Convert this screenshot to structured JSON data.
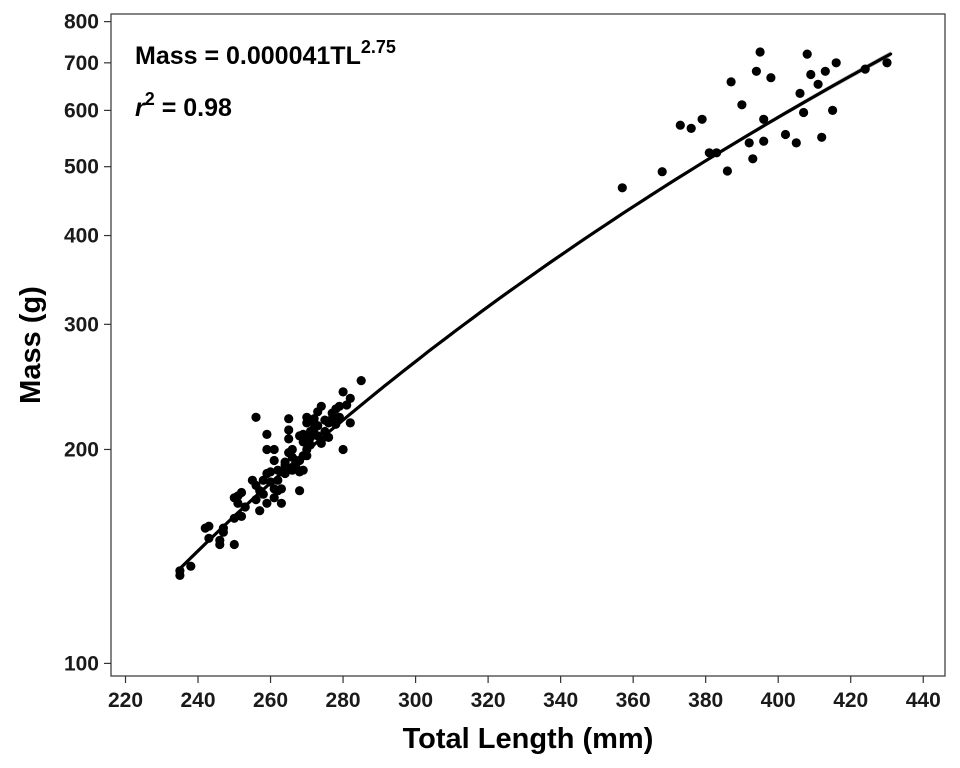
{
  "chart_data": {
    "type": "scatter",
    "xlabel": "Total Length (mm)",
    "ylabel": "Mass (g)",
    "xlim": [
      216,
      446
    ],
    "ylim": [
      96,
      820
    ],
    "y_scale": "log",
    "x_ticks": [
      220,
      240,
      260,
      280,
      300,
      320,
      340,
      360,
      380,
      400,
      420,
      440
    ],
    "y_ticks": [
      100,
      200,
      300,
      400,
      500,
      600,
      700,
      800
    ],
    "grid": false,
    "annotations": {
      "equation_prefix": "Mass = 0.000041TL",
      "equation_exponent": "2.75",
      "r2_symbol": "r",
      "r2_exponent": "2",
      "r2_value": " = 0.98"
    },
    "fit": {
      "type": "power",
      "coefficient": 4.1e-05,
      "exponent": 2.75,
      "x_range": [
        235,
        431
      ],
      "confidence_band": true
    },
    "colors": {
      "points": "#000000",
      "fit_line": "#000000",
      "confidence_band": "#bdbdbd",
      "panel_border": "#333333"
    },
    "points": [
      [
        235,
        133
      ],
      [
        235,
        135
      ],
      [
        238,
        137
      ],
      [
        242,
        155
      ],
      [
        243,
        156
      ],
      [
        243,
        150
      ],
      [
        246,
        147
      ],
      [
        246,
        149
      ],
      [
        247,
        155
      ],
      [
        247,
        153
      ],
      [
        250,
        147
      ],
      [
        250,
        160
      ],
      [
        250,
        171
      ],
      [
        251,
        172
      ],
      [
        251,
        168
      ],
      [
        252,
        174
      ],
      [
        252,
        161
      ],
      [
        253,
        166
      ],
      [
        255,
        181
      ],
      [
        256,
        222
      ],
      [
        256,
        178
      ],
      [
        256,
        170
      ],
      [
        257,
        164
      ],
      [
        257,
        175
      ],
      [
        258,
        181
      ],
      [
        258,
        173
      ],
      [
        259,
        185
      ],
      [
        259,
        210
      ],
      [
        259,
        168
      ],
      [
        259,
        200
      ],
      [
        260,
        186
      ],
      [
        260,
        180
      ],
      [
        261,
        193
      ],
      [
        261,
        200
      ],
      [
        261,
        176
      ],
      [
        261,
        171
      ],
      [
        262,
        187
      ],
      [
        262,
        181
      ],
      [
        262,
        175
      ],
      [
        263,
        176
      ],
      [
        263,
        186
      ],
      [
        263,
        168
      ],
      [
        264,
        190
      ],
      [
        264,
        192
      ],
      [
        264,
        185
      ],
      [
        264,
        188
      ],
      [
        265,
        198
      ],
      [
        265,
        207
      ],
      [
        265,
        213
      ],
      [
        265,
        221
      ],
      [
        266,
        195
      ],
      [
        266,
        187
      ],
      [
        266,
        200
      ],
      [
        267,
        189
      ],
      [
        267,
        193
      ],
      [
        268,
        209
      ],
      [
        268,
        193
      ],
      [
        268,
        175
      ],
      [
        268,
        186
      ],
      [
        269,
        205
      ],
      [
        269,
        196
      ],
      [
        269,
        210
      ],
      [
        269,
        187
      ],
      [
        270,
        222
      ],
      [
        270,
        218
      ],
      [
        270,
        200
      ],
      [
        270,
        196
      ],
      [
        271,
        208
      ],
      [
        271,
        212
      ],
      [
        271,
        203
      ],
      [
        272,
        218
      ],
      [
        272,
        214
      ],
      [
        272,
        221
      ],
      [
        273,
        226
      ],
      [
        273,
        209
      ],
      [
        273,
        216
      ],
      [
        274,
        204
      ],
      [
        274,
        206
      ],
      [
        274,
        230
      ],
      [
        275,
        212
      ],
      [
        275,
        220
      ],
      [
        276,
        208
      ],
      [
        276,
        218
      ],
      [
        277,
        225
      ],
      [
        277,
        221
      ],
      [
        278,
        228
      ],
      [
        278,
        217
      ],
      [
        279,
        222
      ],
      [
        279,
        230
      ],
      [
        280,
        241
      ],
      [
        280,
        200
      ],
      [
        281,
        231
      ],
      [
        282,
        218
      ],
      [
        282,
        236
      ],
      [
        285,
        250
      ],
      [
        357,
        467
      ],
      [
        368,
        492
      ],
      [
        373,
        572
      ],
      [
        376,
        566
      ],
      [
        379,
        583
      ],
      [
        381,
        523
      ],
      [
        383,
        523
      ],
      [
        386,
        493
      ],
      [
        387,
        658
      ],
      [
        390,
        611
      ],
      [
        392,
        540
      ],
      [
        393,
        513
      ],
      [
        394,
        681
      ],
      [
        395,
        725
      ],
      [
        396,
        543
      ],
      [
        396,
        583
      ],
      [
        398,
        667
      ],
      [
        402,
        555
      ],
      [
        405,
        540
      ],
      [
        406,
        634
      ],
      [
        407,
        596
      ],
      [
        408,
        720
      ],
      [
        409,
        674
      ],
      [
        411,
        653
      ],
      [
        412,
        550
      ],
      [
        413,
        681
      ],
      [
        415,
        600
      ],
      [
        416,
        700
      ],
      [
        424,
        686
      ],
      [
        430,
        700
      ]
    ]
  }
}
